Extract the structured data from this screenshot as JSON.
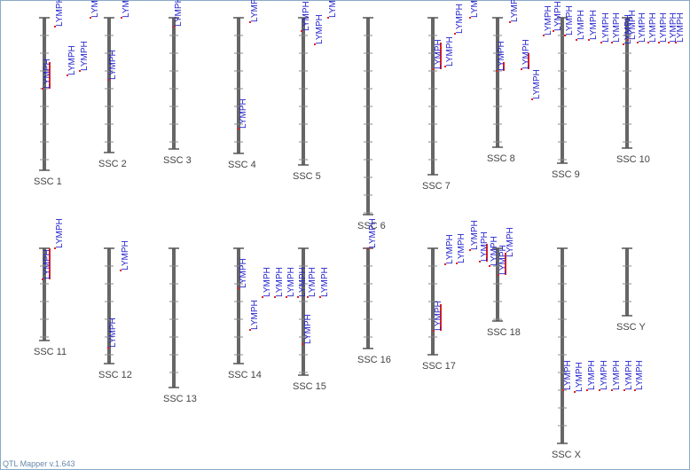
{
  "chromosomes": [
    {
      "name": "SSC 1",
      "qtls": [
        "LYMPH",
        "LYMPH",
        "LYMPH",
        "LYMPH"
      ]
    },
    {
      "name": "SSC 2",
      "qtls": [
        "LYMPH",
        "LYMPH",
        "LYMPH"
      ]
    },
    {
      "name": "SSC 3",
      "qtls": [
        "LYMPH"
      ]
    },
    {
      "name": "SSC 4",
      "qtls": [
        "LYMPH",
        "LYMPH"
      ]
    },
    {
      "name": "SSC 5",
      "qtls": [
        "LYMPH",
        "LYMPH",
        "LYMPH"
      ]
    },
    {
      "name": "SSC 6",
      "qtls": []
    },
    {
      "name": "SSC 7",
      "qtls": [
        "LYMPH",
        "LYMPH",
        "LYMPH",
        "LYMPH"
      ]
    },
    {
      "name": "SSC 8",
      "qtls": [
        "LYMPH",
        "LYMPH",
        "LYMPH",
        "LYMPH"
      ]
    },
    {
      "name": "SSC 9",
      "qtls": [
        "LYMPH",
        "LYMPH",
        "LYMPH",
        "LYMPH",
        "LYMPH",
        "LYMPH",
        "LYMPH"
      ]
    },
    {
      "name": "SSC 10",
      "qtls": [
        "LYMPH",
        "LYMPH",
        "LYMPH",
        "LYMPH",
        "LYMPH",
        "LYMPH",
        "LYMPH"
      ]
    },
    {
      "name": "SSC 11",
      "qtls": [
        "LYMPH",
        "LYMPH"
      ]
    },
    {
      "name": "SSC 12",
      "qtls": [
        "LYMPH",
        "LYMPH"
      ]
    },
    {
      "name": "SSC 13",
      "qtls": []
    },
    {
      "name": "SSC 14",
      "qtls": [
        "LYMPH",
        "LYMPH",
        "LYMPH",
        "LYMPH",
        "LYMPH"
      ]
    },
    {
      "name": "SSC 15",
      "qtls": [
        "LYMPH",
        "LYMPH",
        "LYMPH",
        "LYMPH"
      ]
    },
    {
      "name": "SSC 16",
      "qtls": [
        "LYMPH"
      ]
    },
    {
      "name": "SSC 17",
      "qtls": [
        "LYMPH",
        "LYMPH",
        "LYMPH",
        "LYMPH"
      ]
    },
    {
      "name": "SSC 18",
      "qtls": [
        "LYMPH",
        "LYMPH",
        "LYMPH",
        "LYMPH"
      ]
    },
    {
      "name": "SSC X",
      "qtls": [
        "LYMPH",
        "LYMPH",
        "LYMPH",
        "LYMPH",
        "LYMPH",
        "LYMPH",
        "LYMPH"
      ]
    },
    {
      "name": "SSC Y",
      "qtls": []
    }
  ],
  "footer": "QTL Mapper v.1.643"
}
